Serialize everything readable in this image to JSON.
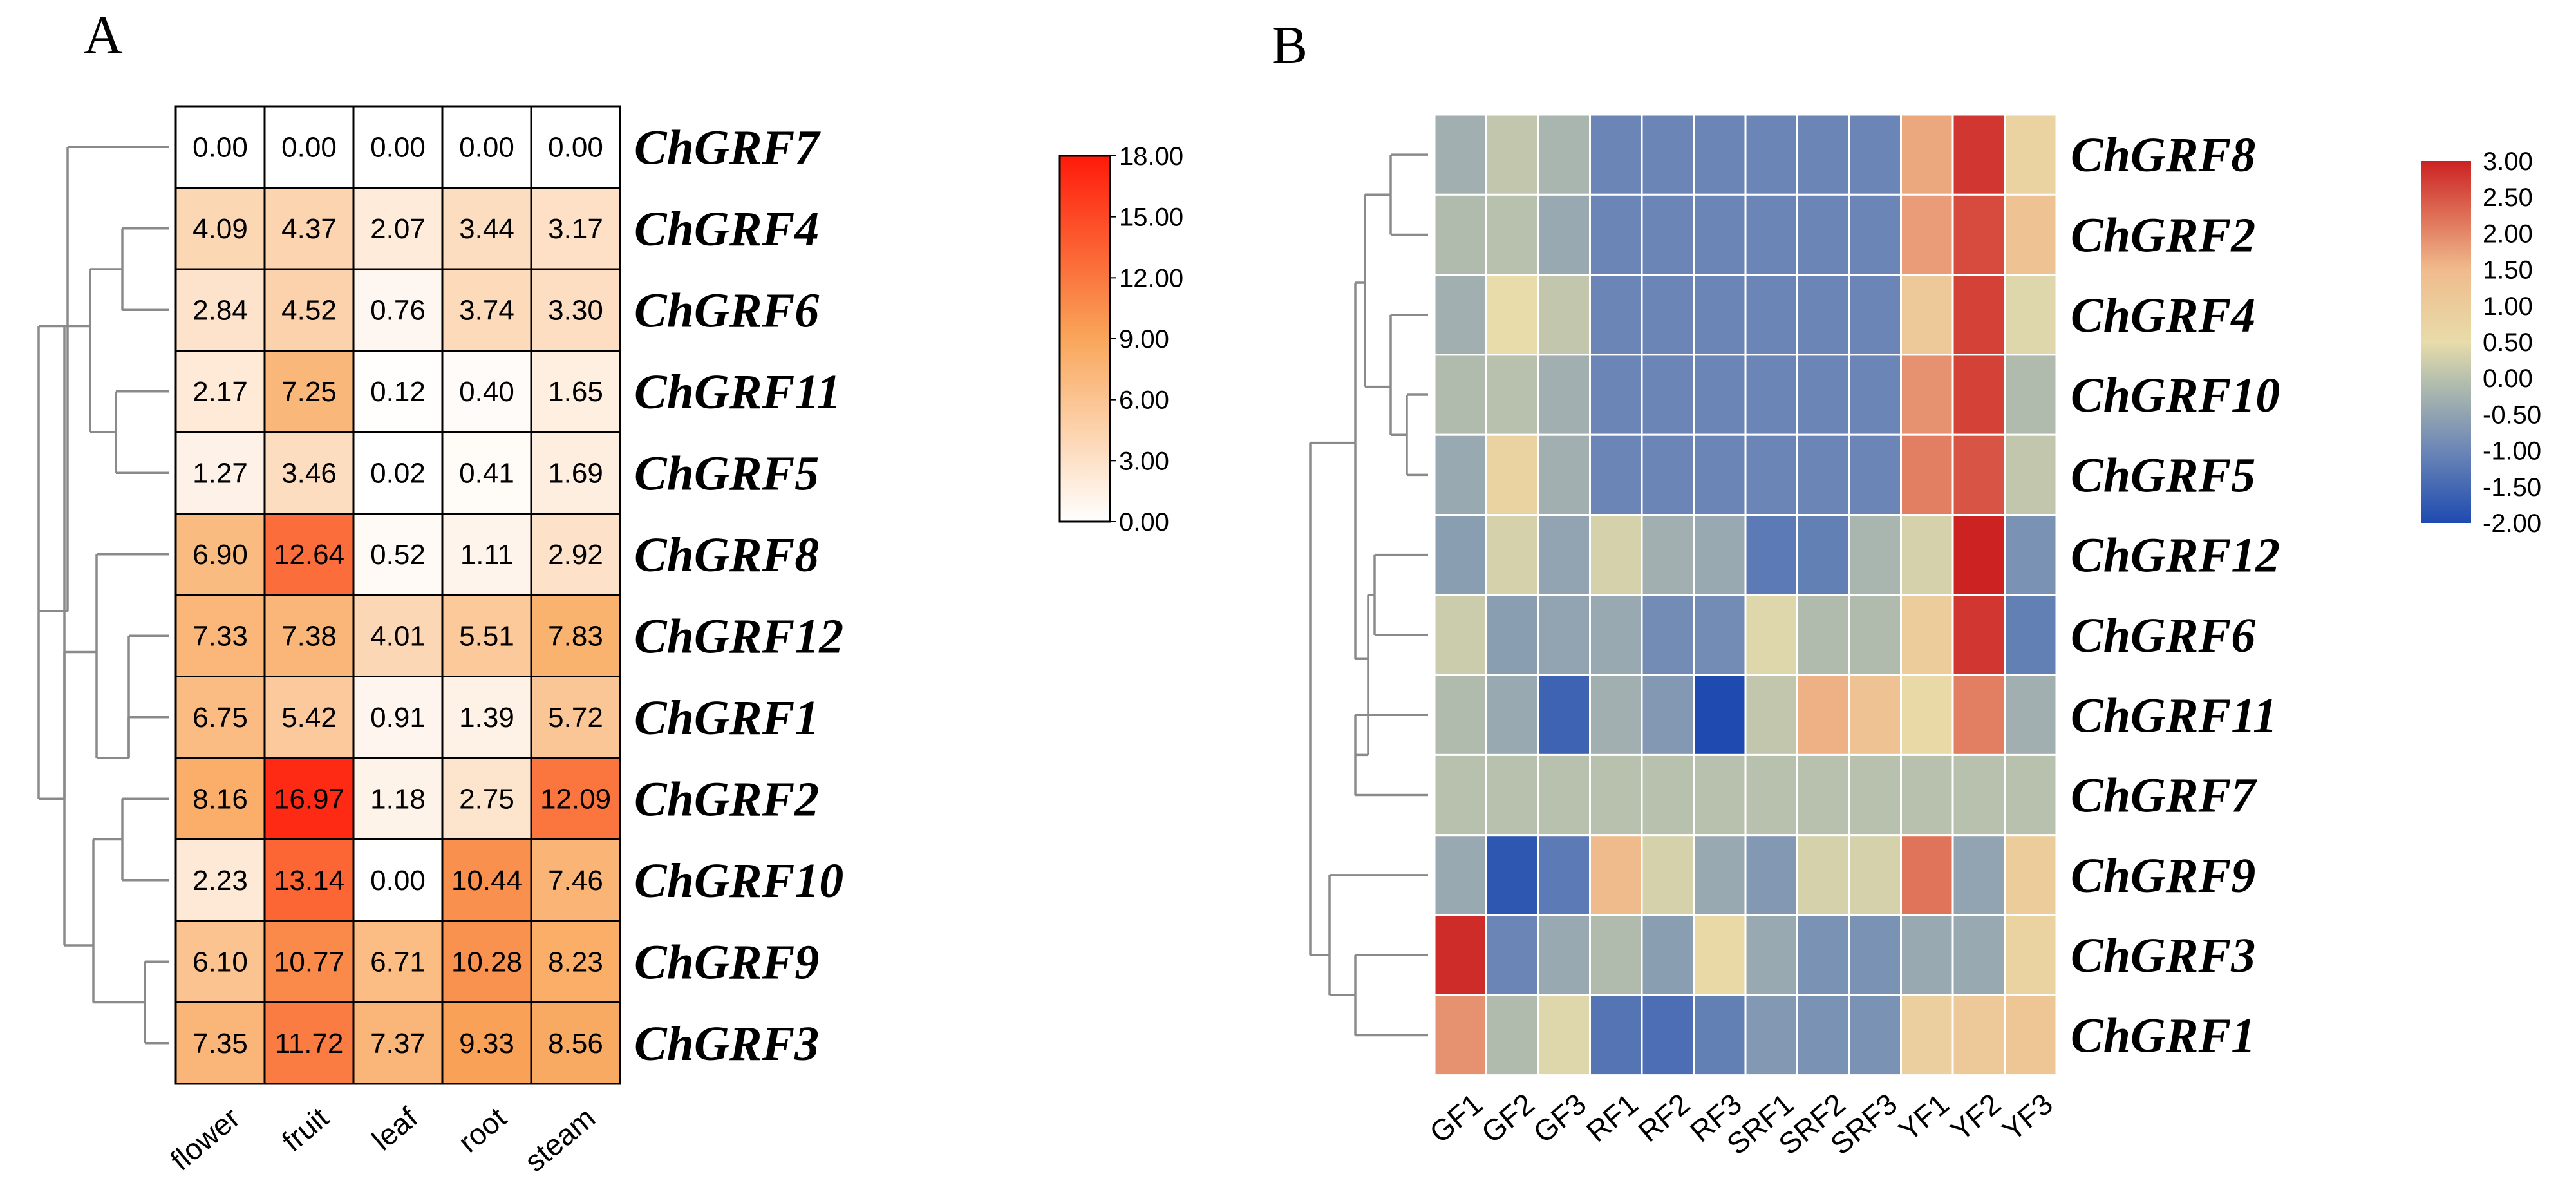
{
  "chart_data": [
    {
      "panel": "A",
      "type": "heatmap",
      "title": "",
      "rows": [
        "ChGRF7",
        "ChGRF4",
        "ChGRF6",
        "ChGRF11",
        "ChGRF5",
        "ChGRF8",
        "ChGRF12",
        "ChGRF1",
        "ChGRF2",
        "ChGRF10",
        "ChGRF9",
        "ChGRF3"
      ],
      "columns": [
        "flower",
        "fruit",
        "leaf",
        "root",
        "steam"
      ],
      "values": [
        [
          0.0,
          0.0,
          0.0,
          0.0,
          0.0
        ],
        [
          4.09,
          4.37,
          2.07,
          3.44,
          3.17
        ],
        [
          2.84,
          4.52,
          0.76,
          3.74,
          3.3
        ],
        [
          2.17,
          7.25,
          0.12,
          0.4,
          1.65
        ],
        [
          1.27,
          3.46,
          0.02,
          0.41,
          1.69
        ],
        [
          6.9,
          12.64,
          0.52,
          1.11,
          2.92
        ],
        [
          7.33,
          7.38,
          4.01,
          5.51,
          7.83
        ],
        [
          6.75,
          5.42,
          0.91,
          1.39,
          5.72
        ],
        [
          8.16,
          16.97,
          1.18,
          2.75,
          12.09
        ],
        [
          2.23,
          13.14,
          0.0,
          10.44,
          7.46
        ],
        [
          6.1,
          10.77,
          6.71,
          10.28,
          8.23
        ],
        [
          7.35,
          11.72,
          7.37,
          9.33,
          8.56
        ]
      ],
      "value_labels": [
        [
          "0.00",
          "0.00",
          "0.00",
          "0.00",
          "0.00"
        ],
        [
          "4.09",
          "4.37",
          "2.07",
          "3.44",
          "3.17"
        ],
        [
          "2.84",
          "4.52",
          "0.76",
          "3.74",
          "3.30"
        ],
        [
          "2.17",
          "7.25",
          "0.12",
          "0.40",
          "1.65"
        ],
        [
          "1.27",
          "3.46",
          "0.02",
          "0.41",
          "1.69"
        ],
        [
          "6.90",
          "12.64",
          "0.52",
          "1.11",
          "2.92"
        ],
        [
          "7.33",
          "7.38",
          "4.01",
          "5.51",
          "7.83"
        ],
        [
          "6.75",
          "5.42",
          "0.91",
          "1.39",
          "5.72"
        ],
        [
          "8.16",
          "16.97",
          "1.18",
          "2.75",
          "12.09"
        ],
        [
          "2.23",
          "13.14",
          "0.00",
          "10.44",
          "7.46"
        ],
        [
          "6.10",
          "10.77",
          "6.71",
          "10.28",
          "8.23"
        ],
        [
          "7.35",
          "11.72",
          "7.37",
          "9.33",
          "8.56"
        ]
      ],
      "color_scale": {
        "min": 0,
        "max": 18,
        "colors": [
          "#ffffff",
          "#f9a65a",
          "#ff1a0a"
        ],
        "stops": [
          0,
          0.5,
          1
        ],
        "tick_labels": [
          "18.00",
          "15.00",
          "12.00",
          "9.00",
          "6.00",
          "3.00",
          "0.00"
        ],
        "tick_values": [
          18,
          15,
          12,
          9,
          6,
          3,
          0
        ]
      },
      "dendrogram_side": "left",
      "row_label_side": "right",
      "column_label_side": "bottom"
    },
    {
      "panel": "B",
      "type": "heatmap",
      "title": "",
      "rows": [
        "ChGRF8",
        "ChGRF2",
        "ChGRF4",
        "ChGRF10",
        "ChGRF5",
        "ChGRF12",
        "ChGRF6",
        "ChGRF11",
        "ChGRF7",
        "ChGRF9",
        "ChGRF3",
        "ChGRF1"
      ],
      "columns": [
        "GF1",
        "GF2",
        "GF3",
        "RF1",
        "RF2",
        "RF3",
        "SRF1",
        "SRF2",
        "SRF3",
        "YF1",
        "YF2",
        "YF3"
      ],
      "values": [
        [
          -0.3,
          0.1,
          -0.2,
          -1.0,
          -1.0,
          -1.0,
          -1.0,
          -1.0,
          -1.0,
          1.7,
          2.8,
          0.8
        ],
        [
          -0.1,
          0.0,
          -0.4,
          -1.0,
          -1.0,
          -1.0,
          -1.0,
          -1.0,
          -1.0,
          1.8,
          2.6,
          1.3
        ],
        [
          -0.3,
          0.5,
          0.1,
          -1.0,
          -1.0,
          -1.0,
          -1.0,
          -1.0,
          -1.0,
          1.1,
          2.7,
          0.4
        ],
        [
          -0.1,
          0.0,
          -0.3,
          -1.0,
          -1.0,
          -1.0,
          -1.0,
          -1.0,
          -1.0,
          1.9,
          2.7,
          -0.1
        ],
        [
          -0.4,
          0.8,
          -0.3,
          -1.0,
          -1.0,
          -1.0,
          -1.0,
          -1.0,
          -1.0,
          2.1,
          2.5,
          0.1
        ],
        [
          -0.6,
          0.3,
          -0.5,
          0.3,
          -0.3,
          -0.4,
          -1.2,
          -1.1,
          -0.2,
          0.3,
          3.0,
          -0.8
        ],
        [
          0.2,
          -0.6,
          -0.5,
          -0.4,
          -0.9,
          -0.9,
          0.4,
          -0.1,
          -0.1,
          1.0,
          2.8,
          -1.1
        ],
        [
          -0.1,
          -0.4,
          -1.6,
          -0.3,
          -0.7,
          -2.0,
          0.1,
          1.6,
          1.3,
          0.6,
          2.1,
          -0.3
        ],
        [
          0.0,
          0.0,
          0.0,
          0.0,
          0.0,
          0.0,
          0.0,
          0.0,
          0.0,
          0.0,
          0.0,
          0.0
        ],
        [
          -0.4,
          -1.8,
          -1.2,
          1.5,
          0.3,
          -0.4,
          -0.7,
          0.3,
          0.3,
          2.2,
          -0.5,
          1.0
        ],
        [
          2.9,
          -1.0,
          -0.4,
          -0.1,
          -0.6,
          0.6,
          -0.4,
          -0.8,
          -0.8,
          -0.4,
          -0.4,
          0.8
        ],
        [
          1.9,
          -0.1,
          0.4,
          -1.3,
          -1.4,
          -1.1,
          -0.7,
          -0.8,
          -0.8,
          0.9,
          1.1,
          1.2
        ]
      ],
      "color_scale": {
        "min": -2,
        "max": 3,
        "colors": [
          "#1f4bb0",
          "#6b86b6",
          "#b8c1ad",
          "#e8dcaa",
          "#f0bb8c",
          "#cc2222"
        ],
        "stops": [
          0,
          0.2,
          0.4,
          0.5,
          0.7,
          1
        ],
        "tick_labels": [
          "3.00",
          "2.50",
          "2.00",
          "1.50",
          "1.00",
          "0.50",
          "0.00",
          "-0.50",
          "-1.00",
          "-1.50",
          "-2.00"
        ],
        "tick_values": [
          3,
          2.5,
          2,
          1.5,
          1,
          0.5,
          0,
          -0.5,
          -1,
          -1.5,
          -2
        ]
      },
      "dendrogram_side": "left",
      "row_label_side": "right",
      "column_label_side": "bottom"
    }
  ]
}
